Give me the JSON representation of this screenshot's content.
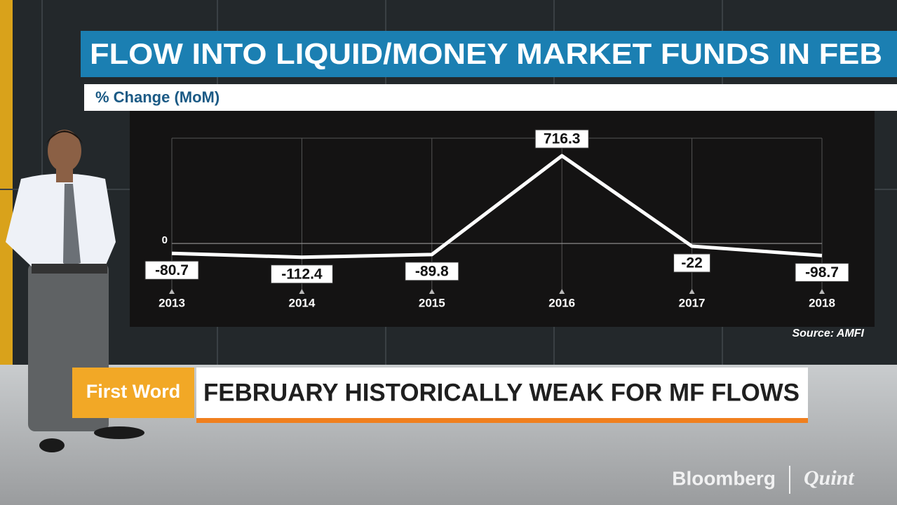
{
  "chart_data": {
    "type": "line",
    "title": "FLOW INTO LIQUID/MONEY MARKET FUNDS IN FEB",
    "subtitle": "% Change (MoM)",
    "categories": [
      "2013",
      "2014",
      "2015",
      "2016",
      "2017",
      "2018"
    ],
    "values": [
      -80.7,
      -112.4,
      -89.8,
      716.3,
      -22,
      -98.7
    ],
    "color": "#ffffff",
    "ylim": [
      -400,
      860
    ],
    "yticks": [
      0
    ],
    "grid": true,
    "source": "Source: AMFI"
  },
  "lower_third": {
    "tag": "First Word",
    "headline": "FEBRUARY HISTORICALLY WEAK FOR MF FLOWS"
  },
  "logo": {
    "left": "Bloomberg",
    "right": "Quint"
  }
}
